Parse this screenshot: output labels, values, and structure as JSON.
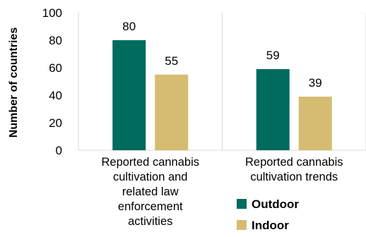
{
  "chart_data": {
    "type": "bar",
    "categories": [
      [
        "Reported cannabis",
        "cultivation and",
        "related law",
        "enforcement",
        "activities"
      ],
      [
        "Reported cannabis",
        "cultivation trends"
      ]
    ],
    "series": [
      {
        "name": "Outdoor",
        "values": [
          80,
          59
        ],
        "color": "#006b5e"
      },
      {
        "name": "Indoor",
        "values": [
          55,
          39
        ],
        "color": "#d5bc72"
      }
    ],
    "ylabel": "Number of countries",
    "ylim": [
      0,
      100
    ],
    "yticks": [
      0,
      20,
      40,
      60,
      80,
      100
    ],
    "grid": "vertical-category-separators",
    "legend": "bottom-right"
  }
}
